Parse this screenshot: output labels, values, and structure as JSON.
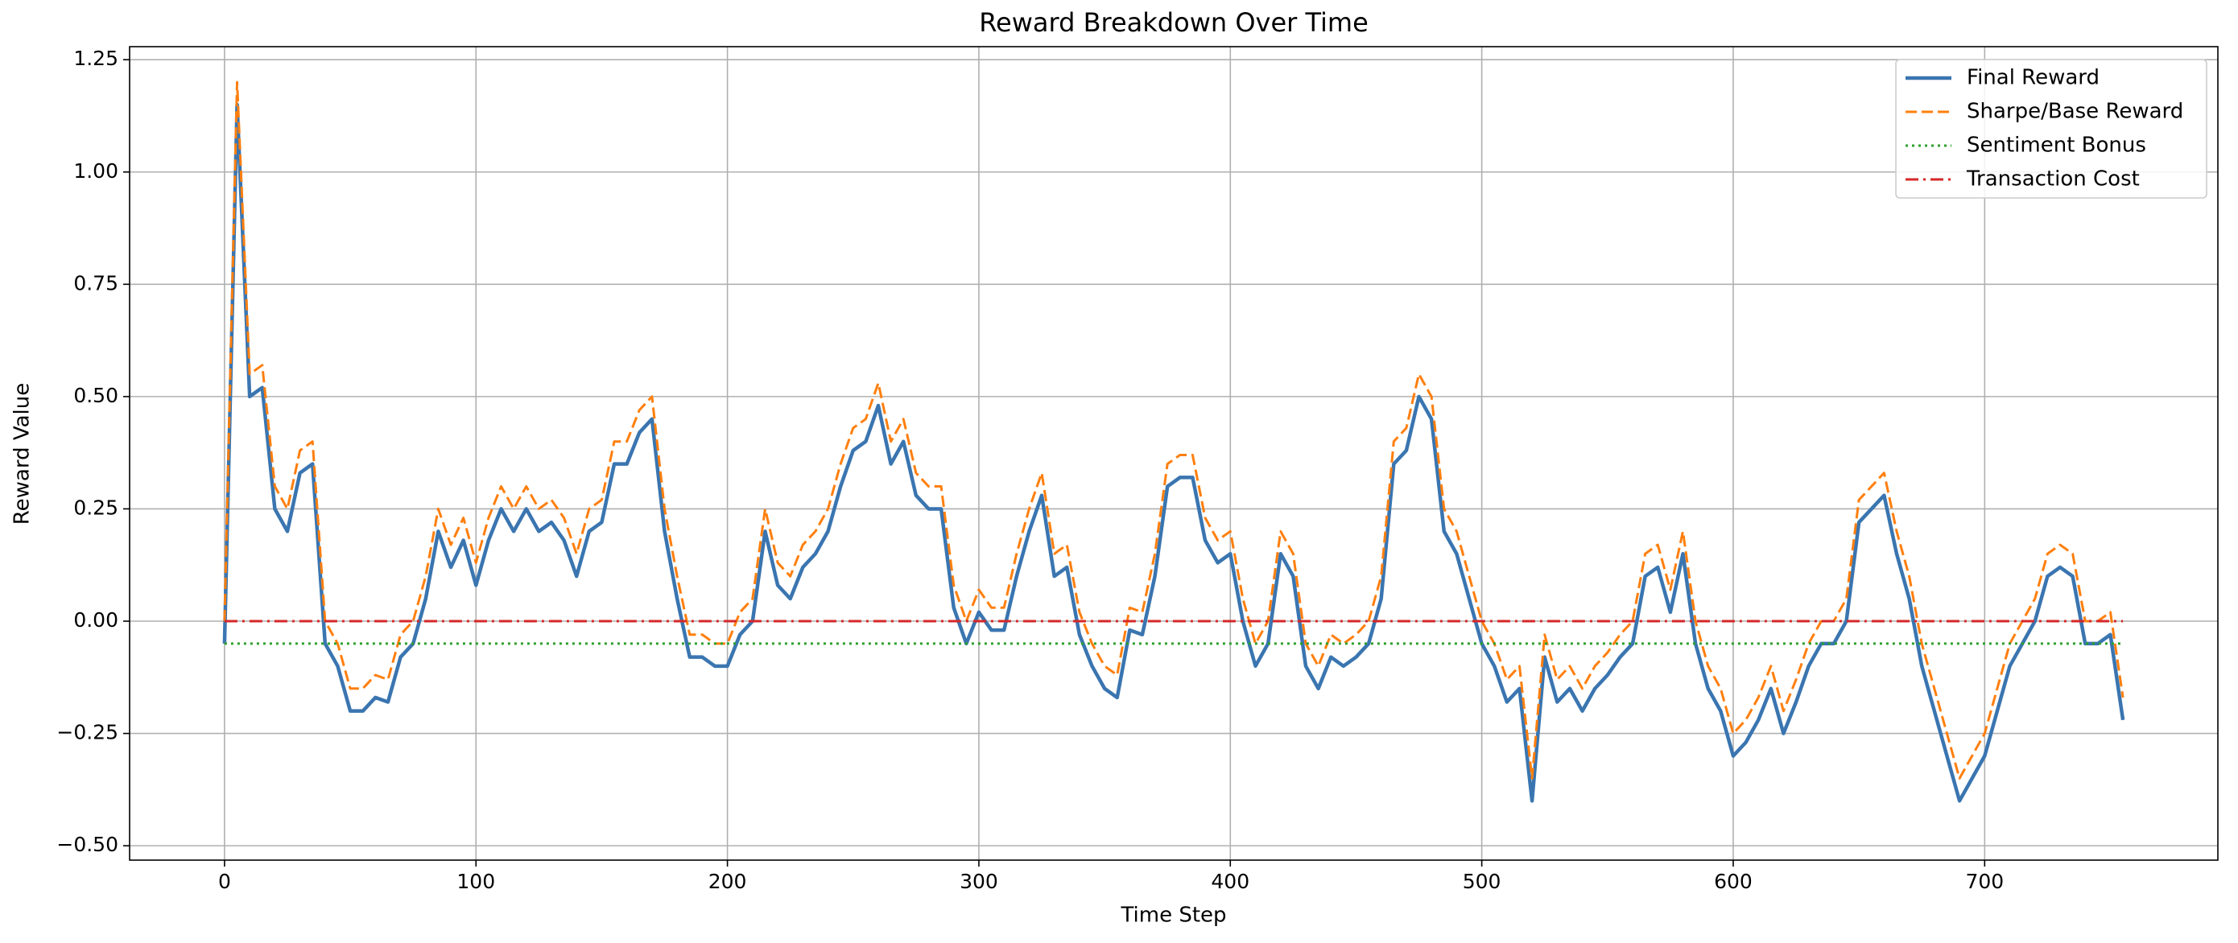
{
  "chart_data": {
    "type": "line",
    "title": "Reward Breakdown Over Time",
    "xlabel": "Time Step",
    "ylabel": "Reward Value",
    "x": [
      0,
      5,
      10,
      15,
      20,
      25,
      30,
      35,
      40,
      45,
      50,
      55,
      60,
      65,
      70,
      75,
      80,
      85,
      90,
      95,
      100,
      105,
      110,
      115,
      120,
      125,
      130,
      135,
      140,
      145,
      150,
      155,
      160,
      165,
      170,
      175,
      180,
      185,
      190,
      195,
      200,
      205,
      210,
      215,
      220,
      225,
      230,
      235,
      240,
      245,
      250,
      255,
      260,
      265,
      270,
      275,
      280,
      285,
      290,
      295,
      300,
      305,
      310,
      315,
      320,
      325,
      330,
      335,
      340,
      345,
      350,
      355,
      360,
      365,
      370,
      375,
      380,
      385,
      390,
      395,
      400,
      405,
      410,
      415,
      420,
      425,
      430,
      435,
      440,
      445,
      450,
      455,
      460,
      465,
      470,
      475,
      480,
      485,
      490,
      495,
      500,
      505,
      510,
      515,
      520,
      525,
      530,
      535,
      540,
      545,
      550,
      555,
      560,
      565,
      570,
      575,
      580,
      585,
      590,
      595,
      600,
      605,
      610,
      615,
      620,
      625,
      630,
      635,
      640,
      645,
      650,
      655,
      660,
      665,
      670,
      675,
      680,
      685,
      690,
      695,
      700,
      705,
      710,
      715,
      720,
      725,
      730,
      735,
      740,
      745,
      750,
      755
    ],
    "series": [
      {
        "name": "Final Reward",
        "color": "#3a75b0",
        "linestyle": "solid",
        "values": [
          -0.05,
          1.15,
          0.5,
          0.52,
          0.25,
          0.2,
          0.33,
          0.35,
          -0.05,
          -0.1,
          -0.2,
          -0.2,
          -0.17,
          -0.18,
          -0.08,
          -0.05,
          0.05,
          0.2,
          0.12,
          0.18,
          0.08,
          0.18,
          0.25,
          0.2,
          0.25,
          0.2,
          0.22,
          0.18,
          0.1,
          0.2,
          0.22,
          0.35,
          0.35,
          0.42,
          0.45,
          0.2,
          0.05,
          -0.08,
          -0.08,
          -0.1,
          -0.1,
          -0.03,
          0,
          0.2,
          0.08,
          0.05,
          0.12,
          0.15,
          0.2,
          0.3,
          0.38,
          0.4,
          0.48,
          0.35,
          0.4,
          0.28,
          0.25,
          0.25,
          0.03,
          -0.05,
          0.02,
          -0.02,
          -0.02,
          0.1,
          0.2,
          0.28,
          0.1,
          0.12,
          -0.03,
          -0.1,
          -0.15,
          -0.17,
          -0.02,
          -0.03,
          0.1,
          0.3,
          0.32,
          0.32,
          0.18,
          0.13,
          0.15,
          0,
          -0.1,
          -0.05,
          0.15,
          0.1,
          -0.1,
          -0.15,
          -0.08,
          -0.1,
          -0.08,
          -0.05,
          0.05,
          0.35,
          0.38,
          0.5,
          0.45,
          0.2,
          0.15,
          0.05,
          -0.05,
          -0.1,
          -0.18,
          -0.15,
          -0.4,
          -0.08,
          -0.18,
          -0.15,
          -0.2,
          -0.15,
          -0.12,
          -0.08,
          -0.05,
          0.1,
          0.12,
          0.02,
          0.15,
          -0.05,
          -0.15,
          -0.2,
          -0.3,
          -0.27,
          -0.22,
          -0.15,
          -0.25,
          -0.18,
          -0.1,
          -0.05,
          -0.05,
          0,
          0.22,
          0.25,
          0.28,
          0.15,
          0.05,
          -0.1,
          -0.2,
          -0.3,
          -0.4,
          -0.35,
          -0.3,
          -0.2,
          -0.1,
          -0.05,
          0,
          0.1,
          0.12,
          0.1,
          -0.05,
          -0.05,
          -0.03,
          -0.22
        ]
      },
      {
        "name": "Sharpe/Base Reward",
        "color": "#ff7f0e",
        "linestyle": "dashed",
        "values": [
          0,
          1.2,
          0.55,
          0.57,
          0.3,
          0.25,
          0.38,
          0.4,
          0,
          -0.05,
          -0.15,
          -0.15,
          -0.12,
          -0.13,
          -0.03,
          0,
          0.1,
          0.25,
          0.17,
          0.23,
          0.13,
          0.23,
          0.3,
          0.25,
          0.3,
          0.25,
          0.27,
          0.23,
          0.15,
          0.25,
          0.27,
          0.4,
          0.4,
          0.47,
          0.5,
          0.25,
          0.1,
          -0.03,
          -0.03,
          -0.05,
          -0.05,
          0.02,
          0.05,
          0.25,
          0.13,
          0.1,
          0.17,
          0.2,
          0.25,
          0.35,
          0.43,
          0.45,
          0.53,
          0.4,
          0.45,
          0.33,
          0.3,
          0.3,
          0.08,
          0,
          0.07,
          0.03,
          0.03,
          0.15,
          0.25,
          0.33,
          0.15,
          0.17,
          0.02,
          -0.05,
          -0.1,
          -0.12,
          0.03,
          0.02,
          0.15,
          0.35,
          0.37,
          0.37,
          0.23,
          0.18,
          0.2,
          0.05,
          -0.05,
          0,
          0.2,
          0.15,
          -0.05,
          -0.1,
          -0.03,
          -0.05,
          -0.03,
          0,
          0.1,
          0.4,
          0.43,
          0.55,
          0.5,
          0.25,
          0.2,
          0.1,
          0,
          -0.05,
          -0.13,
          -0.1,
          -0.35,
          -0.03,
          -0.13,
          -0.1,
          -0.15,
          -0.1,
          -0.07,
          -0.03,
          0,
          0.15,
          0.17,
          0.07,
          0.2,
          0,
          -0.1,
          -0.15,
          -0.25,
          -0.22,
          -0.17,
          -0.1,
          -0.2,
          -0.13,
          -0.05,
          0,
          0,
          0.05,
          0.27,
          0.3,
          0.33,
          0.2,
          0.1,
          -0.05,
          -0.15,
          -0.25,
          -0.35,
          -0.3,
          -0.25,
          -0.15,
          -0.05,
          0,
          0.05,
          0.15,
          0.17,
          0.15,
          0,
          0,
          0.02,
          -0.17
        ]
      },
      {
        "name": "Sentiment Bonus",
        "color": "#2ca02c",
        "linestyle": "dotted",
        "values": [
          -0.05,
          -0.05,
          -0.05,
          -0.05,
          -0.05,
          -0.05,
          -0.05,
          -0.05,
          -0.05,
          -0.05,
          -0.05,
          -0.05,
          -0.05,
          -0.05,
          -0.05,
          -0.05,
          -0.05,
          -0.05,
          -0.05,
          -0.05,
          -0.05,
          -0.05,
          -0.05,
          -0.05,
          -0.05,
          -0.05,
          -0.05,
          -0.05,
          -0.05,
          -0.05,
          -0.05,
          -0.05,
          -0.05,
          -0.05,
          -0.05,
          -0.05,
          -0.05,
          -0.05,
          -0.05,
          -0.05,
          -0.05,
          -0.05,
          -0.05,
          -0.05,
          -0.05,
          -0.05,
          -0.05,
          -0.05,
          -0.05,
          -0.05,
          -0.05,
          -0.05,
          -0.05,
          -0.05,
          -0.05,
          -0.05,
          -0.05,
          -0.05,
          -0.05,
          -0.05,
          -0.05,
          -0.05,
          -0.05,
          -0.05,
          -0.05,
          -0.05,
          -0.05,
          -0.05,
          -0.05,
          -0.05,
          -0.05,
          -0.05,
          -0.05,
          -0.05,
          -0.05,
          -0.05,
          -0.05,
          -0.05,
          -0.05,
          -0.05,
          -0.05,
          -0.05,
          -0.05,
          -0.05,
          -0.05,
          -0.05,
          -0.05,
          -0.05,
          -0.05,
          -0.05,
          -0.05,
          -0.05,
          -0.05,
          -0.05,
          -0.05,
          -0.05,
          -0.05,
          -0.05,
          -0.05,
          -0.05,
          -0.05,
          -0.05,
          -0.05,
          -0.05,
          -0.05,
          -0.05,
          -0.05,
          -0.05,
          -0.05,
          -0.05,
          -0.05,
          -0.05,
          -0.05,
          -0.05,
          -0.05,
          -0.05,
          -0.05,
          -0.05,
          -0.05,
          -0.05,
          -0.05,
          -0.05,
          -0.05,
          -0.05,
          -0.05,
          -0.05,
          -0.05,
          -0.05,
          -0.05,
          -0.05,
          -0.05,
          -0.05,
          -0.05,
          -0.05,
          -0.05,
          -0.05,
          -0.05,
          -0.05,
          -0.05,
          -0.05,
          -0.05,
          -0.05,
          -0.05,
          -0.05,
          -0.05,
          -0.05,
          -0.05,
          -0.05,
          -0.05,
          -0.05,
          -0.05,
          -0.05
        ]
      },
      {
        "name": "Transaction Cost",
        "color": "#d62728",
        "linestyle": "dashdot",
        "values": [
          0,
          0,
          0,
          0,
          0,
          0,
          0,
          0,
          0,
          0,
          0,
          0,
          0,
          0,
          0,
          0,
          0,
          0,
          0,
          0,
          0,
          0,
          0,
          0,
          0,
          0,
          0,
          0,
          0,
          0,
          0,
          0,
          0,
          0,
          0,
          0,
          0,
          0,
          0,
          0,
          0,
          0,
          0,
          0,
          0,
          0,
          0,
          0,
          0,
          0,
          0,
          0,
          0,
          0,
          0,
          0,
          0,
          0,
          0,
          0,
          0,
          0,
          0,
          0,
          0,
          0,
          0,
          0,
          0,
          0,
          0,
          0,
          0,
          0,
          0,
          0,
          0,
          0,
          0,
          0,
          0,
          0,
          0,
          0,
          0,
          0,
          0,
          0,
          0,
          0,
          0,
          0,
          0,
          0,
          0,
          0,
          0,
          0,
          0,
          0,
          0,
          0,
          0,
          0,
          0,
          0,
          0,
          0,
          0,
          0,
          0,
          0,
          0,
          0,
          0,
          0,
          0,
          0,
          0,
          0,
          0,
          0,
          0,
          0,
          0,
          0,
          0,
          0,
          0,
          0,
          0,
          0,
          0,
          0,
          0,
          0,
          0,
          0,
          0,
          0,
          0,
          0,
          0,
          0,
          0,
          0,
          0,
          0,
          0,
          0,
          0,
          0
        ]
      }
    ],
    "xlim": [
      -37.75,
      792.75
    ],
    "xticks": [
      0,
      100,
      200,
      300,
      400,
      500,
      600,
      700
    ],
    "ylim": [
      -0.532,
      1.279
    ],
    "yticks": [
      {
        "value": -0.5,
        "label": "−0.50"
      },
      {
        "value": -0.25,
        "label": "−0.25"
      },
      {
        "value": 0,
        "label": "0.00"
      },
      {
        "value": 0.25,
        "label": "0.25"
      },
      {
        "value": 0.5,
        "label": "0.50"
      },
      {
        "value": 0.75,
        "label": "0.75"
      },
      {
        "value": 1.0,
        "label": "1.00"
      },
      {
        "value": 1.25,
        "label": "1.25"
      }
    ],
    "grid": true,
    "legend": "upper-right"
  }
}
